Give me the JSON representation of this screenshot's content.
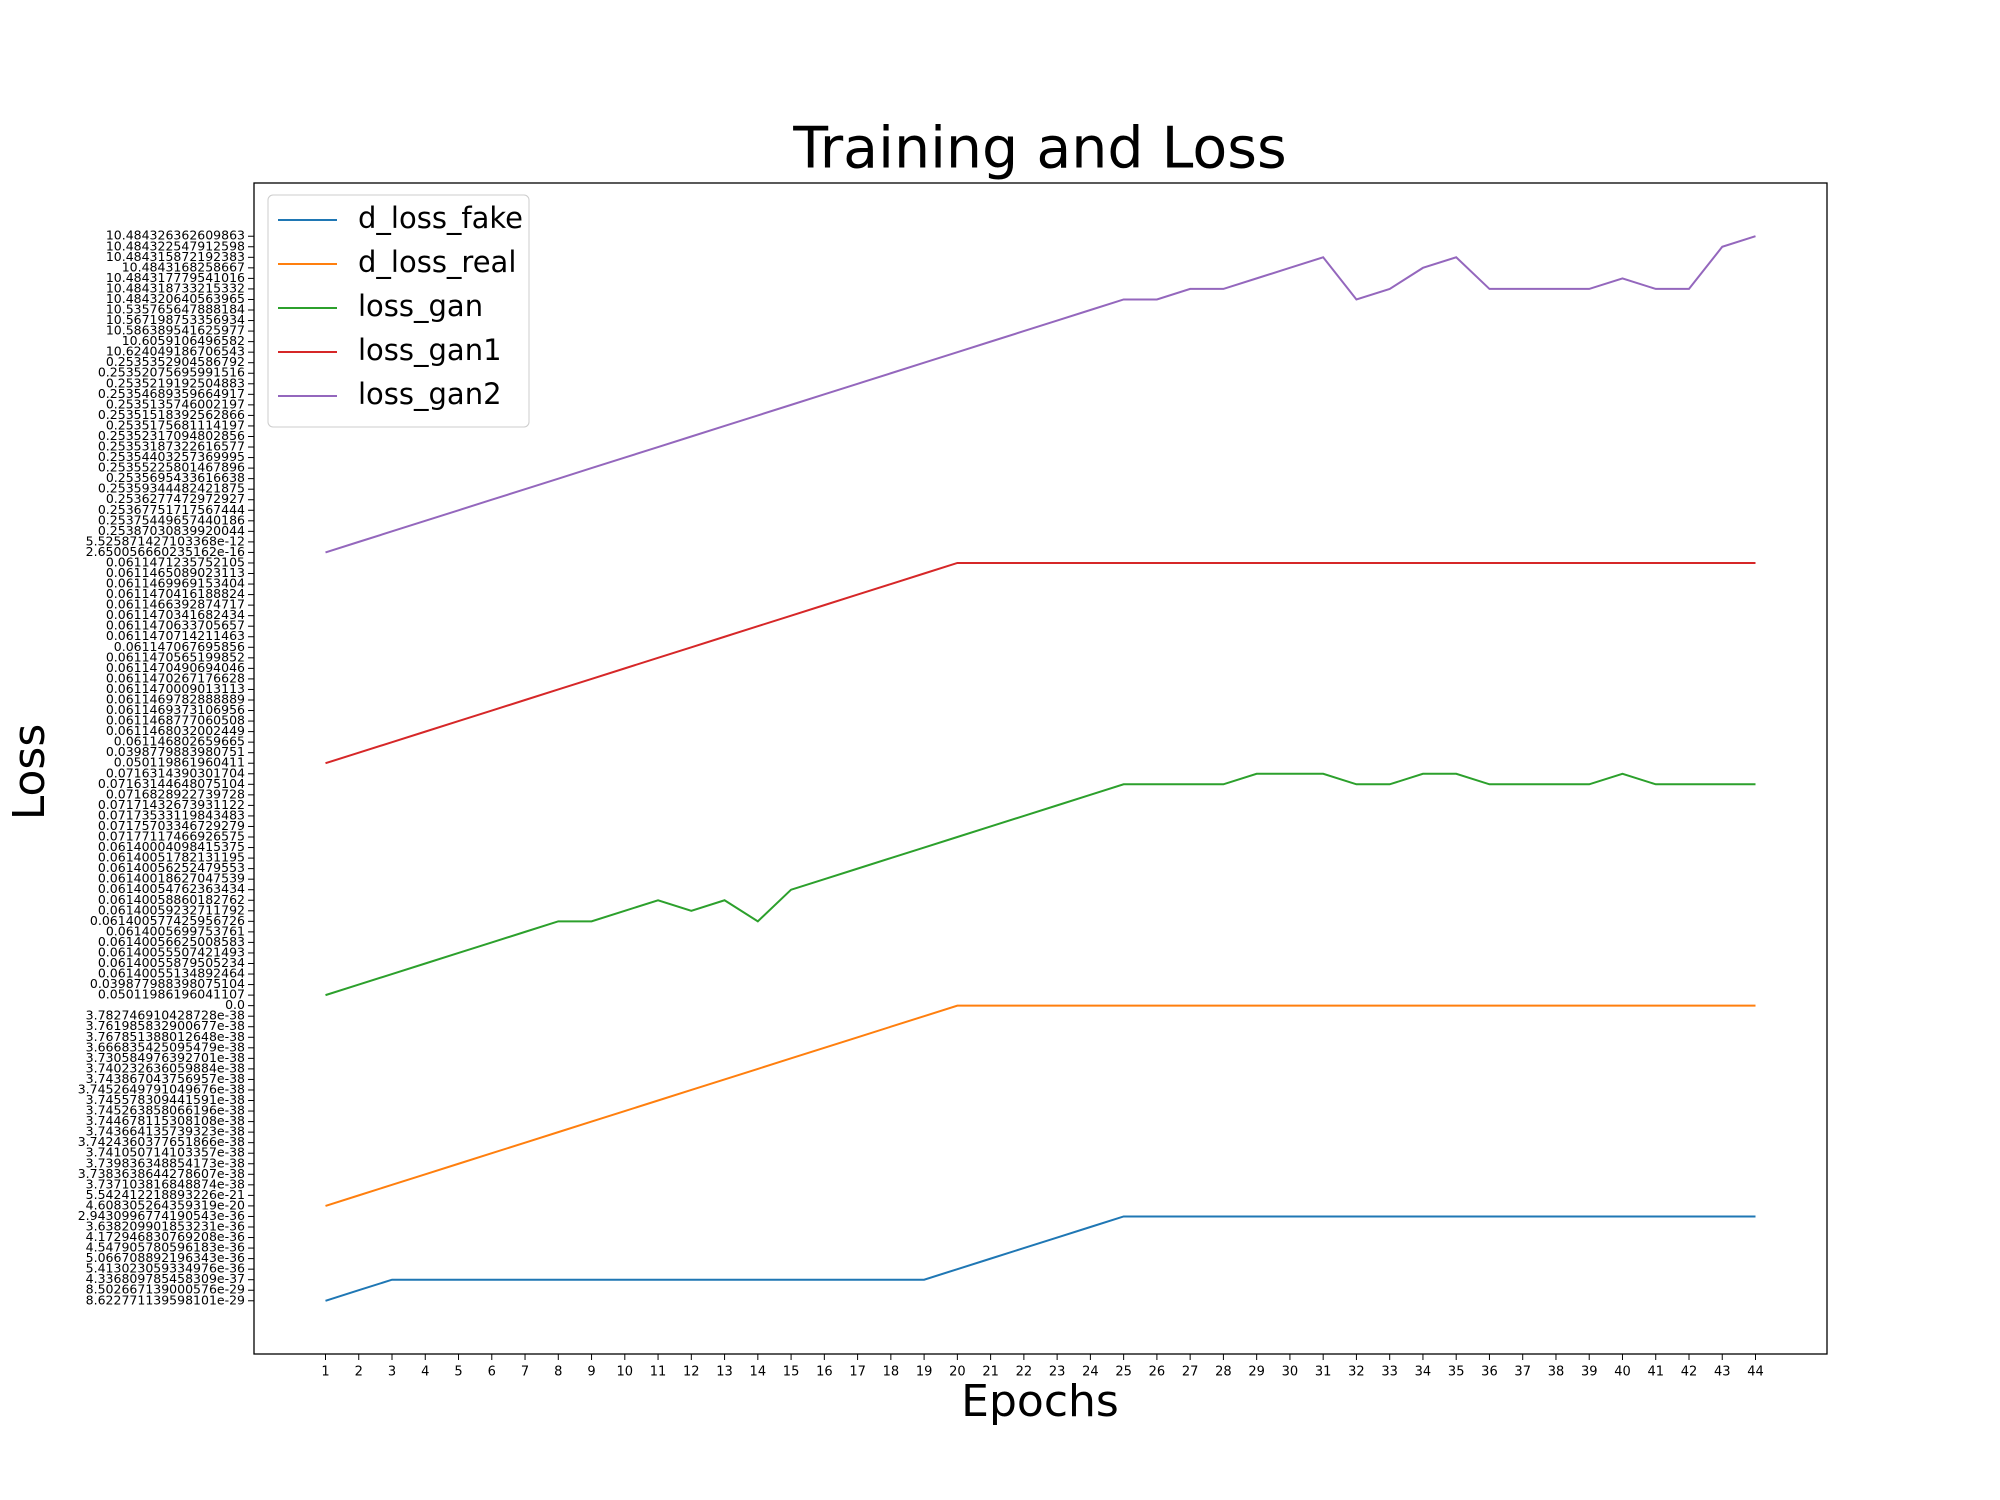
{
  "chart_data": {
    "type": "line",
    "title": "Training and Loss",
    "x_label": "Epochs",
    "y_label": "Loss",
    "legend": "upper left",
    "categories": [
      1,
      2,
      3,
      4,
      5,
      6,
      7,
      8,
      9,
      10,
      11,
      12,
      13,
      14,
      15,
      16,
      17,
      18,
      19,
      20,
      21,
      22,
      23,
      24,
      25,
      26,
      27,
      28,
      29,
      30,
      31,
      32,
      33,
      34,
      35,
      36,
      37,
      38,
      39,
      40,
      41,
      42,
      43,
      44
    ],
    "y_categories": [
      "8.622771139598101e-29",
      "8.502667139000576e-29",
      "4.336809785458309e-37",
      "5.413023059334976e-36",
      "5.066708892196343e-36",
      "4.547905780596183e-36",
      "4.172946830769208e-36",
      "3.638209901853231e-36",
      "2.9430996774190543e-36",
      "4.608305264359319e-20",
      "5.542412218893226e-21",
      "3.737103816848874e-38",
      "3.7383638644278607e-38",
      "3.739836348854173e-38",
      "3.741050714103357e-38",
      "3.7424360377651866e-38",
      "3.743664135739323e-38",
      "3.744678115308108e-38",
      "3.745263858066196e-38",
      "3.745578309441591e-38",
      "3.7452649791049676e-38",
      "3.743867043756957e-38",
      "3.740232636059884e-38",
      "3.730584976392701e-38",
      "3.666835425095479e-38",
      "3.767851388012648e-38",
      "3.761985832900677e-38",
      "3.782746910428728e-38",
      "0.0",
      "0.05011986196041107",
      "0.039877988398075104",
      "0.06140055134892464",
      "0.06140055879505234",
      "0.06140055507421493",
      "0.06140056625008583",
      "0.0614005699753761",
      "0.061400577425956726",
      "0.06140059232711792",
      "0.06140058860182762",
      "0.06140054762363434",
      "0.06140018627047539",
      "0.06140056252479553",
      "0.06140051782131195",
      "0.06140004098415375",
      "0.07177117466926575",
      "0.07175703346729279",
      "0.07173533119843483",
      "0.07171432673931122",
      "0.0716828922739728",
      "0.07163144648075104",
      "0.0716314390301704",
      "0.050119861960411",
      "0.0398779883980751",
      "0.061146802659665",
      "0.0611468032002449",
      "0.0611468777060508",
      "0.0611469373106956",
      "0.0611469782888889",
      "0.0611470009013113",
      "0.0611470267176628",
      "0.0611470490694046",
      "0.0611470565199852",
      "0.061147067695856",
      "0.0611470714211463",
      "0.0611470633705657",
      "0.0611470341682434",
      "0.0611466392874717",
      "0.0611470416188824",
      "0.0611469969153404",
      "0.0611465089023113",
      "0.0611471235752105",
      "2.650056660235162e-16",
      "5.525871427103368e-12",
      "0.25387030839920044",
      "0.25375449657440186",
      "0.25367751717567444",
      "0.2536277472972927",
      "0.25359344482421875",
      "0.2535695433616638",
      "0.25355225801467896",
      "0.25354403257369995",
      "0.25353187322616577",
      "0.25352317094802856",
      "0.2535175681114197",
      "0.25351518392562866",
      "0.2535135746002197",
      "0.25354689359664917",
      "0.2535219192504883",
      "0.25352075695991516",
      "0.2535352904586792",
      "10.624049186706543",
      "10.6059106496582",
      "10.586389541625977",
      "10.567198753356934",
      "10.535765647888184",
      "10.484320640563965",
      "10.484318733215332",
      "10.484317779541016",
      "10.4843168258667",
      "10.484315872192383",
      "10.484322547912598",
      "10.484326362609863"
    ],
    "series": [
      {
        "name": "d_loss_fake",
        "color": "#1f77b4",
        "values": [
          "8.622771139598101e-29",
          "8.502667139000576e-29",
          "4.336809785458309e-37",
          "4.336809785458309e-37",
          "4.336809785458309e-37",
          "4.336809785458309e-37",
          "4.336809785458309e-37",
          "4.336809785458309e-37",
          "4.336809785458309e-37",
          "4.336809785458309e-37",
          "4.336809785458309e-37",
          "4.336809785458309e-37",
          "4.336809785458309e-37",
          "4.336809785458309e-37",
          "4.336809785458309e-37",
          "4.336809785458309e-37",
          "4.336809785458309e-37",
          "4.336809785458309e-37",
          "4.336809785458309e-37",
          "5.413023059334976e-36",
          "5.066708892196343e-36",
          "4.547905780596183e-36",
          "4.172946830769208e-36",
          "3.638209901853231e-36",
          "2.9430996774190543e-36",
          "2.9430996774190543e-36",
          "2.9430996774190543e-36",
          "2.9430996774190543e-36",
          "2.9430996774190543e-36",
          "2.9430996774190543e-36",
          "2.9430996774190543e-36",
          "2.9430996774190543e-36",
          "2.9430996774190543e-36",
          "2.9430996774190543e-36",
          "2.9430996774190543e-36",
          "2.9430996774190543e-36",
          "2.9430996774190543e-36",
          "2.9430996774190543e-36",
          "2.9430996774190543e-36",
          "2.9430996774190543e-36",
          "2.9430996774190543e-36",
          "2.9430996774190543e-36",
          "2.9430996774190543e-36",
          "2.9430996774190543e-36"
        ]
      },
      {
        "name": "d_loss_real",
        "color": "#ff7f0e",
        "values": [
          "4.608305264359319e-20",
          "5.542412218893226e-21",
          "3.737103816848874e-38",
          "3.7383638644278607e-38",
          "3.739836348854173e-38",
          "3.741050714103357e-38",
          "3.7424360377651866e-38",
          "3.743664135739323e-38",
          "3.744678115308108e-38",
          "3.745263858066196e-38",
          "3.745578309441591e-38",
          "3.7452649791049676e-38",
          "3.743867043756957e-38",
          "3.740232636059884e-38",
          "3.730584976392701e-38",
          "3.666835425095479e-38",
          "3.767851388012648e-38",
          "3.761985832900677e-38",
          "3.782746910428728e-38",
          "0.0",
          "0.0",
          "0.0",
          "0.0",
          "0.0",
          "0.0",
          "0.0",
          "0.0",
          "0.0",
          "0.0",
          "0.0",
          "0.0",
          "0.0",
          "0.0",
          "0.0",
          "0.0",
          "0.0",
          "0.0",
          "0.0",
          "0.0",
          "0.0",
          "0.0",
          "0.0",
          "0.0",
          "0.0"
        ]
      },
      {
        "name": "loss_gan",
        "color": "#2ca02c",
        "values": [
          "0.05011986196041107",
          "0.039877988398075104",
          "0.06140055134892464",
          "0.06140055879505234",
          "0.06140055507421493",
          "0.06140056625008583",
          "0.0614005699753761",
          "0.061400577425956726",
          "0.061400577425956726",
          "0.06140059232711792",
          "0.06140058860182762",
          "0.06140059232711792",
          "0.06140058860182762",
          "0.061400577425956726",
          "0.06140054762363434",
          "0.06140018627047539",
          "0.06140056252479553",
          "0.06140051782131195",
          "0.06140004098415375",
          "0.07177117466926575",
          "0.07175703346729279",
          "0.07173533119843483",
          "0.07171432673931122",
          "0.0716828922739728",
          "0.07163144648075104",
          "0.07163144648075104",
          "0.07163144648075104",
          "0.07163144648075104",
          "0.0716314390301704",
          "0.0716314390301704",
          "0.0716314390301704",
          "0.07163144648075104",
          "0.07163144648075104",
          "0.0716314390301704",
          "0.0716314390301704",
          "0.07163144648075104",
          "0.07163144648075104",
          "0.07163144648075104",
          "0.07163144648075104",
          "0.0716314390301704",
          "0.07163144648075104",
          "0.07163144648075104",
          "0.07163144648075104",
          "0.07163144648075104"
        ]
      },
      {
        "name": "loss_gan1",
        "color": "#d62728",
        "values": [
          "0.050119861960411",
          "0.0398779883980751",
          "0.061146802659665",
          "0.0611468032002449",
          "0.0611468777060508",
          "0.0611469373106956",
          "0.0611469782888889",
          "0.0611470009013113",
          "0.0611470267176628",
          "0.0611470490694046",
          "0.0611470565199852",
          "0.061147067695856",
          "0.0611470714211463",
          "0.0611470633705657",
          "0.0611470341682434",
          "0.0611466392874717",
          "0.0611470416188824",
          "0.0611469969153404",
          "0.0611465089023113",
          "0.0611471235752105",
          "0.0611471235752105",
          "0.0611471235752105",
          "0.0611471235752105",
          "0.0611471235752105",
          "0.0611471235752105",
          "0.0611471235752105",
          "0.0611471235752105",
          "0.0611471235752105",
          "0.0611471235752105",
          "0.0611471235752105",
          "0.0611471235752105",
          "0.0611471235752105",
          "0.0611471235752105",
          "0.0611471235752105",
          "0.0611471235752105",
          "0.0611471235752105",
          "0.0611471235752105",
          "0.0611471235752105",
          "0.0611471235752105",
          "0.0611471235752105",
          "0.0611471235752105",
          "0.0611471235752105",
          "0.0611471235752105",
          "0.0611471235752105"
        ]
      },
      {
        "name": "loss_gan2",
        "color": "#9467bd",
        "values": [
          "2.650056660235162e-16",
          "5.525871427103368e-12",
          "0.25387030839920044",
          "0.25375449657440186",
          "0.25367751717567444",
          "0.2536277472972927",
          "0.25359344482421875",
          "0.2535695433616638",
          "0.25355225801467896",
          "0.25354403257369995",
          "0.25353187322616577",
          "0.25352317094802856",
          "0.2535175681114197",
          "0.25351518392562866",
          "0.2535135746002197",
          "0.25354689359664917",
          "0.2535219192504883",
          "0.25352075695991516",
          "0.2535352904586792",
          "10.624049186706543",
          "10.6059106496582",
          "10.586389541625977",
          "10.567198753356934",
          "10.535765647888184",
          "10.484320640563965",
          "10.484320640563965",
          "10.484318733215332",
          "10.484318733215332",
          "10.484317779541016",
          "10.4843168258667",
          "10.484315872192383",
          "10.484320640563965",
          "10.484318733215332",
          "10.4843168258667",
          "10.484315872192383",
          "10.484318733215332",
          "10.484318733215332",
          "10.484318733215332",
          "10.484318733215332",
          "10.484317779541016",
          "10.484318733215332",
          "10.484318733215332",
          "10.484322547912598",
          "10.484326362609863"
        ]
      }
    ]
  }
}
